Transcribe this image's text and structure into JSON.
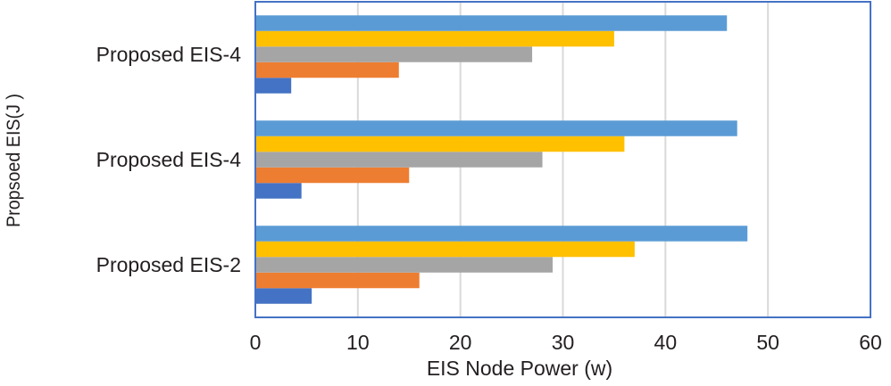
{
  "chart_data": {
    "type": "bar",
    "orientation": "horizontal",
    "title": "",
    "xlabel": "EIS Node Power (w)",
    "ylabel": "Propsoed EIS(J )",
    "xlim": [
      0,
      60
    ],
    "xticks": [
      "0",
      "10",
      "20",
      "30",
      "40",
      "50",
      "60"
    ],
    "grid": "vertical",
    "legend": "none",
    "categories": [
      "Proposed EIS-2",
      "Proposed EIS-4",
      "Proposed EIS-4"
    ],
    "series": [
      {
        "color": "#4472C4",
        "values": [
          5.5,
          4.5,
          3.5
        ]
      },
      {
        "color": "#ED7D31",
        "values": [
          16,
          15,
          14
        ]
      },
      {
        "color": "#A5A5A5",
        "values": [
          29,
          28,
          27
        ]
      },
      {
        "color": "#FFC000",
        "values": [
          37,
          36,
          35
        ]
      },
      {
        "color": "#5B9BD5",
        "values": [
          48,
          47,
          46
        ]
      }
    ],
    "colors": {
      "border": "#4472C4",
      "grid": "#d9d9d9"
    }
  }
}
